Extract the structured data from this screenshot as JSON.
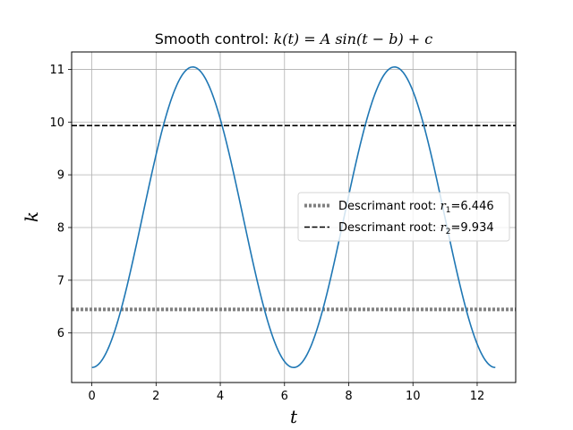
{
  "chart_data": {
    "type": "line",
    "title_prefix": "Smooth control: ",
    "title_math": "k(t) = A sin(t − b) + c",
    "xlabel": "t",
    "ylabel": "k",
    "xlim": [
      -0.63,
      13.2
    ],
    "ylim": [
      5.06,
      11.33
    ],
    "xticks": [
      0,
      2,
      4,
      6,
      8,
      10,
      12
    ],
    "yticks": [
      6,
      7,
      8,
      9,
      10,
      11
    ],
    "grid": true,
    "legend_placement": "center-right",
    "series": [
      {
        "kind": "curve",
        "function": "A*sin(t-b)+c",
        "A": 2.85,
        "b": 1.5708,
        "c": 8.195,
        "t_range": [
          0,
          12.566
        ],
        "color": "#1f77b4"
      },
      {
        "kind": "hline",
        "y": 6.446,
        "color": "#808080",
        "style": "dotted",
        "legend_prefix": "Descrimant root: ",
        "legend_var": "r",
        "legend_sub": "1",
        "legend_value": "=6.446"
      },
      {
        "kind": "hline",
        "y": 9.934,
        "color": "#000000",
        "style": "dashed",
        "legend_prefix": "Descrimant root: ",
        "legend_var": "r",
        "legend_sub": "2",
        "legend_value": "=9.934"
      }
    ]
  }
}
